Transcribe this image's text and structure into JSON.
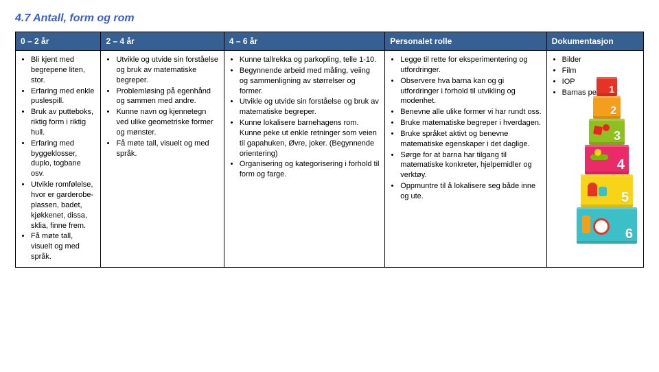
{
  "title": "4.7 Antall, form og rom",
  "headers": [
    "0 – 2 år",
    "2 – 4 år",
    "4 – 6 år",
    "Personalet rolle",
    "Dokumentasjon"
  ],
  "col0": [
    "Bli kjent med begrepene liten, stor.",
    "Erfaring med enkle puslespill.",
    "Bruk av putteboks, riktig form i riktig hull.",
    "Erfaring med byggeklosser, duplo, togbane osv.",
    "Utvikle romfølelse, hvor er garderobe-plassen, badet, kjøkkenet, dissa, sklia, finne frem.",
    "Få møte tall, visuelt og med språk."
  ],
  "col1": [
    "Utvikle og utvide sin forståelse og bruk av matematiske begreper.",
    "Problemløsing på egenhånd og sammen med andre.",
    "Kunne navn og kjennetegn ved ulike geometriske former og mønster.",
    "Få møte tall, visuelt og med språk."
  ],
  "col2": [
    "Kunne tallrekka og parkopling, telle 1-10.",
    "Begynnende arbeid med måling, veiing og sammenligning av størrelser og former.",
    "Utvikle og utvide sin forståelse og bruk av matematiske begreper.",
    "Kunne lokalisere barnehagens rom. Kunne peke ut enkle retninger som veien til gapahuken, Øvre, joker. (Begynnende orientering)",
    "Organisering og kategorisering i forhold til form og farge."
  ],
  "col3": [
    "Legge til rette for eksperimentering og utfordringer.",
    "Observere hva barna kan og gi utfordringer i forhold til utvikling og modenhet.",
    "Benevne alle ulike former vi har rundt oss.",
    "Bruke matematiske begreper i hverdagen.",
    "Bruke språket aktivt og benevne matematiske egenskaper i det daglige.",
    "Sørge for at barna har tilgang til matematiske konkreter, hjelpemidler og verktøy.",
    "Oppmuntre til å lokalisere seg både inne og ute."
  ],
  "col4": [
    "Bilder",
    "Film",
    "IOP",
    "Barnas permer"
  ],
  "stack": {
    "boxes": [
      {
        "num": "1",
        "color": "#e53426"
      },
      {
        "num": "2",
        "color": "#f49f1c"
      },
      {
        "num": "3",
        "color": "#8fbf21"
      },
      {
        "num": "4",
        "color": "#ea2b6a"
      },
      {
        "num": "5",
        "color": "#f7d417"
      },
      {
        "num": "6",
        "color": "#3dbfc7"
      }
    ]
  }
}
